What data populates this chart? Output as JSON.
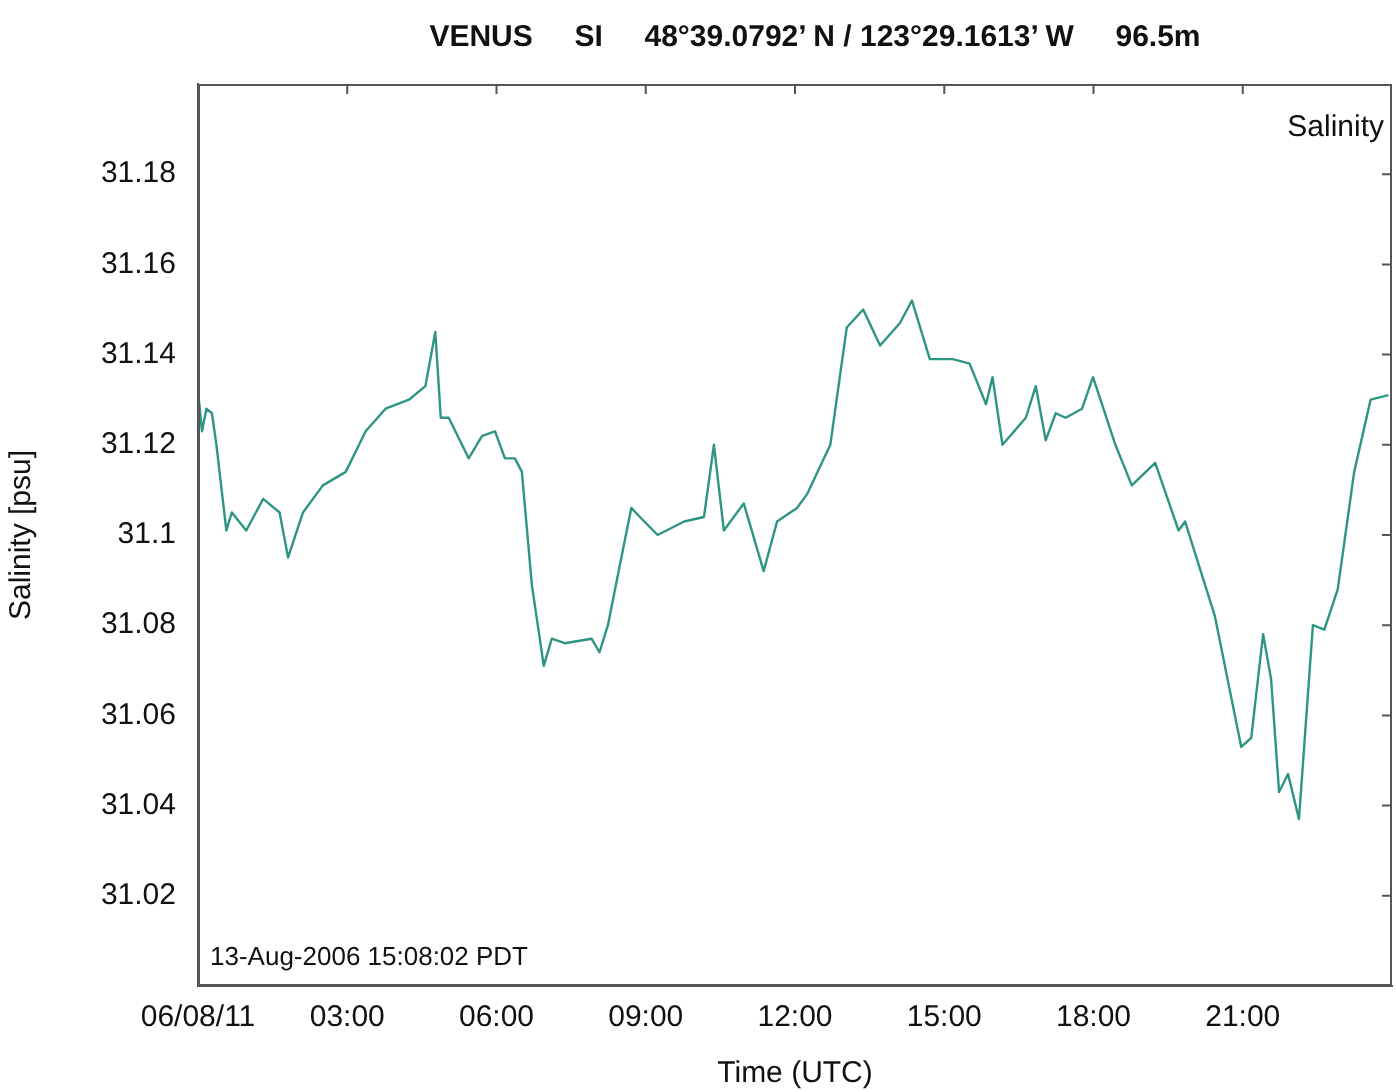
{
  "chart_data": {
    "type": "line",
    "title": "VENUS     SI     48°39.0792’ N / 123°29.1613’ W     96.5m",
    "xlabel": "Time (UTC)",
    "ylabel": "Salinity [psu]",
    "annotations": [
      "Salinity",
      "13-Aug-2006 15:08:02 PDT"
    ],
    "xlim": [
      0,
      24
    ],
    "xticks": [
      {
        "value": 0,
        "label": "06/08/11"
      },
      {
        "value": 3,
        "label": "03:00"
      },
      {
        "value": 6,
        "label": "06:00"
      },
      {
        "value": 9,
        "label": "09:00"
      },
      {
        "value": 12,
        "label": "12:00"
      },
      {
        "value": 15,
        "label": "15:00"
      },
      {
        "value": 18,
        "label": "18:00"
      },
      {
        "value": 21,
        "label": "21:00"
      }
    ],
    "ylim": [
      31.0,
      31.2
    ],
    "yticks": [
      31.02,
      31.04,
      31.06,
      31.08,
      31.1,
      31.12,
      31.14,
      31.16,
      31.18
    ],
    "grid": false,
    "legend": false,
    "marker": "none",
    "line_style": "solid",
    "series": [
      {
        "color": "#2e9585",
        "x": [
          0,
          0.08,
          0.17,
          0.28,
          0.37,
          0.57,
          0.68,
          0.97,
          1.31,
          1.64,
          1.81,
          2.11,
          2.51,
          2.97,
          3.37,
          3.77,
          4.24,
          4.57,
          4.77,
          4.88,
          5.04,
          5.44,
          5.71,
          5.97,
          6.17,
          6.37,
          6.51,
          6.71,
          6.95,
          7.11,
          7.37,
          7.91,
          8.07,
          8.24,
          8.51,
          8.71,
          8.97,
          9.24,
          9.77,
          10.17,
          10.37,
          10.57,
          10.97,
          11.37,
          11.64,
          12.04,
          12.24,
          12.71,
          13.04,
          13.37,
          13.71,
          14.11,
          14.35,
          14.71,
          15.17,
          15.51,
          15.84,
          15.97,
          16.17,
          16.64,
          16.84,
          17.04,
          17.24,
          17.44,
          17.77,
          17.99,
          18.17,
          18.44,
          18.77,
          19.24,
          19.71,
          19.84,
          20.44,
          20.97,
          21.17,
          21.41,
          21.57,
          21.73,
          21.91,
          22.13,
          22.41,
          22.64,
          22.91,
          23.24,
          23.57,
          23.93
        ],
        "values": [
          31.132,
          31.123,
          31.128,
          31.127,
          31.12,
          31.101,
          31.105,
          31.101,
          31.108,
          31.105,
          31.095,
          31.105,
          31.111,
          31.114,
          31.123,
          31.128,
          31.13,
          31.133,
          31.145,
          31.126,
          31.126,
          31.117,
          31.122,
          31.123,
          31.117,
          31.117,
          31.114,
          31.089,
          31.071,
          31.077,
          31.076,
          31.077,
          31.074,
          31.08,
          31.095,
          31.106,
          31.103,
          31.1,
          31.103,
          31.104,
          31.12,
          31.101,
          31.107,
          31.092,
          31.103,
          31.106,
          31.109,
          31.12,
          31.146,
          31.15,
          31.142,
          31.147,
          31.152,
          31.139,
          31.139,
          31.138,
          31.129,
          31.135,
          31.12,
          31.126,
          31.133,
          31.121,
          31.127,
          31.126,
          31.128,
          31.135,
          31.129,
          31.12,
          31.111,
          31.116,
          31.101,
          31.103,
          31.082,
          31.053,
          31.055,
          31.078,
          31.068,
          31.043,
          31.047,
          31.037,
          31.08,
          31.079,
          31.088,
          31.114,
          31.13,
          31.131
        ]
      }
    ]
  }
}
